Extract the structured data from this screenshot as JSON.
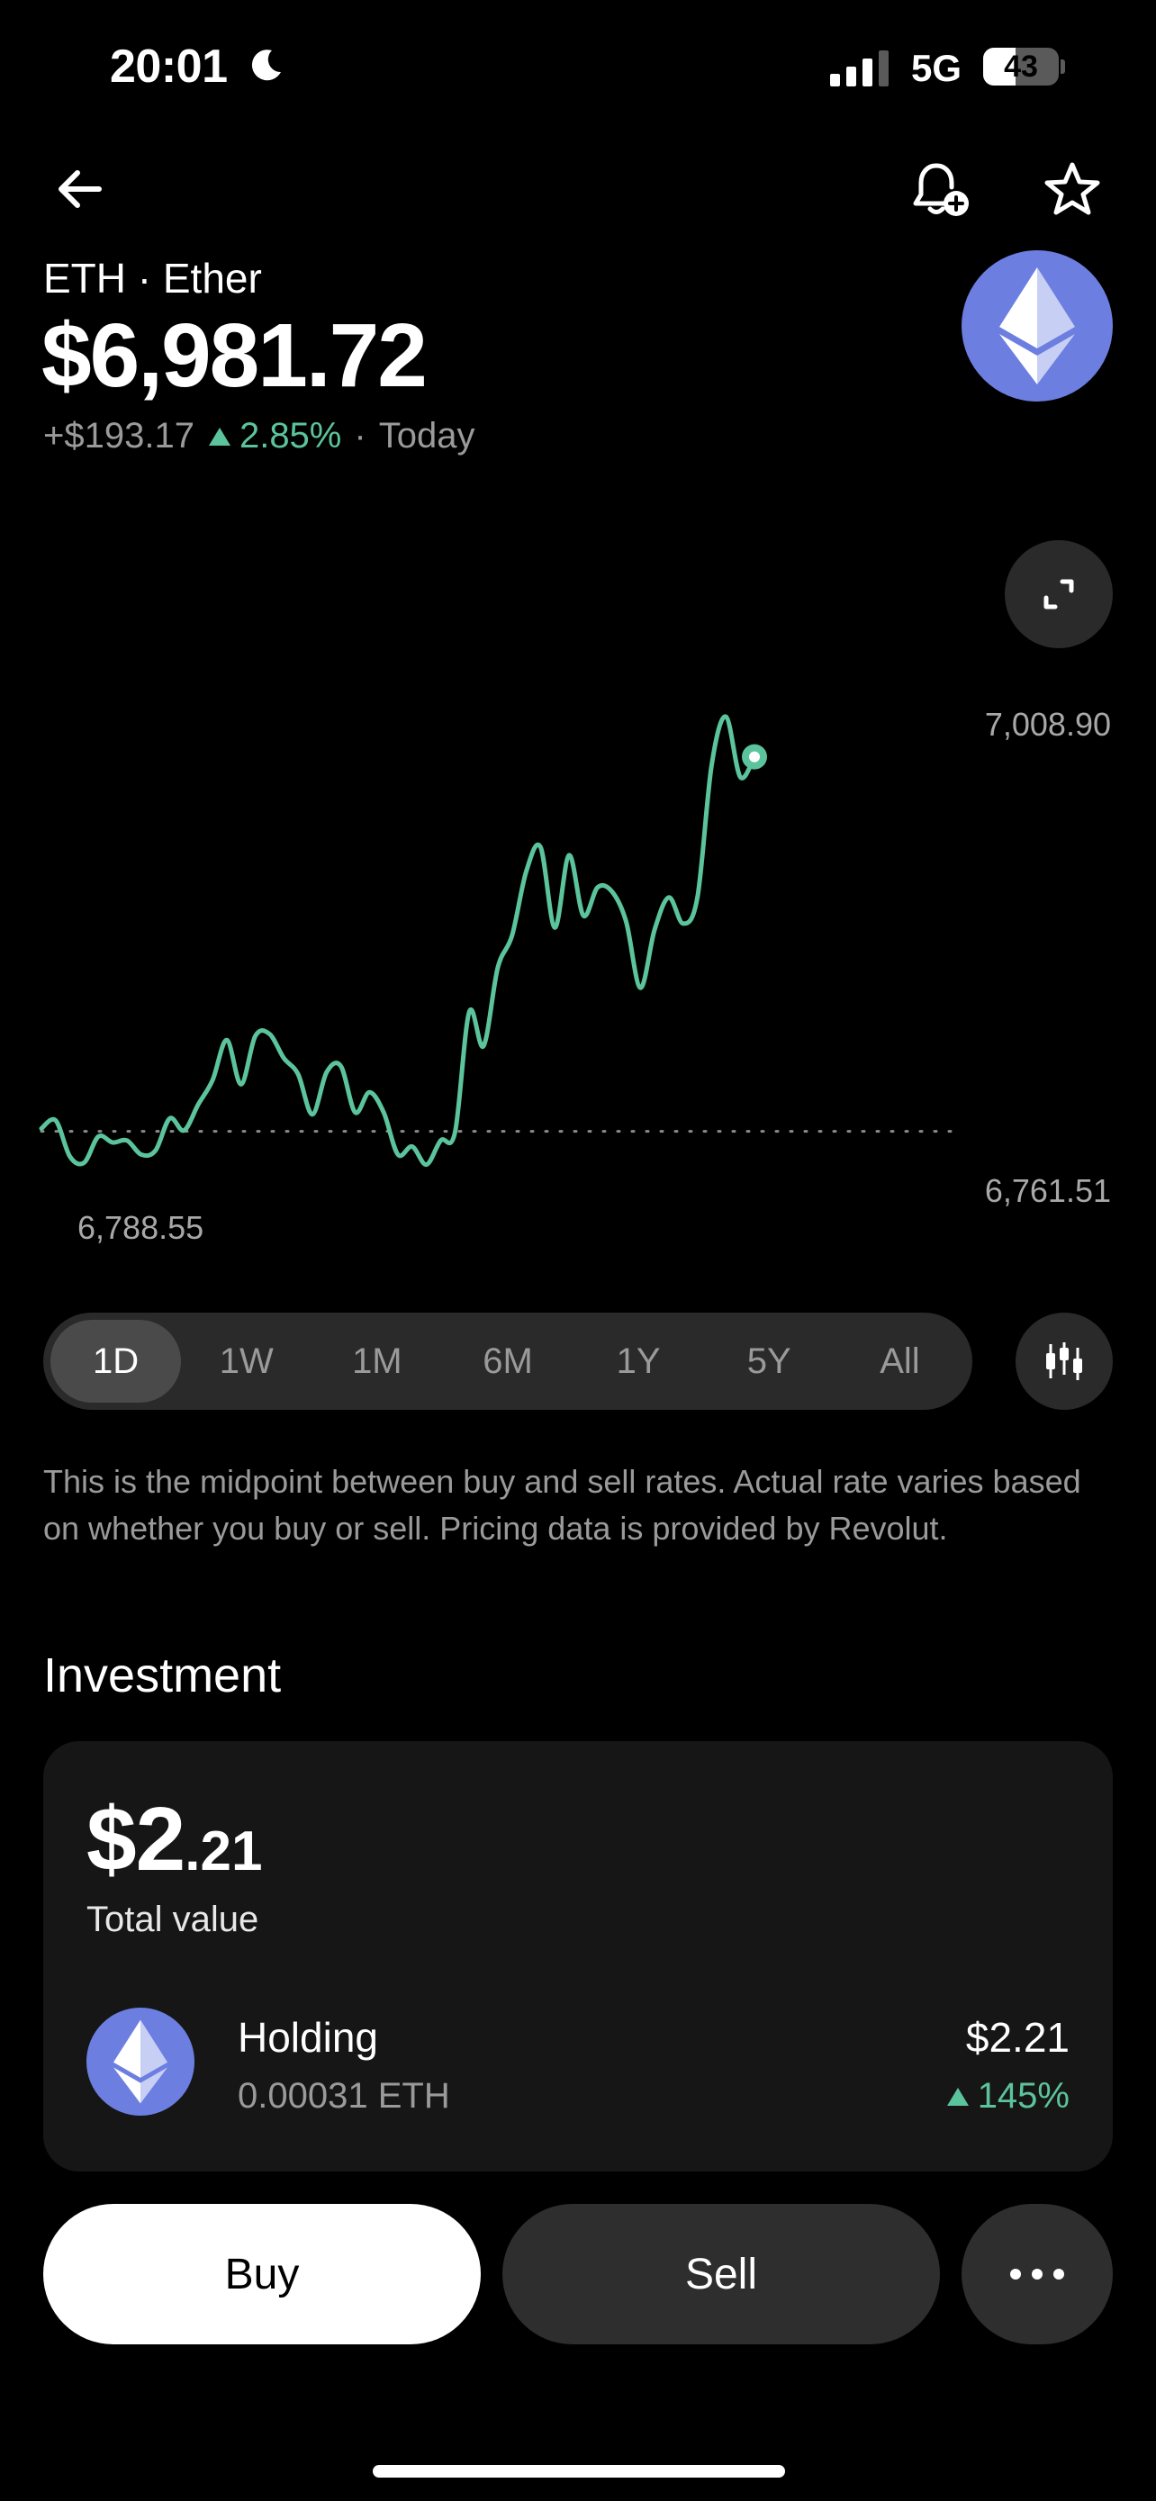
{
  "status_bar": {
    "time": "20:01",
    "network": "5G",
    "battery_level": "43",
    "battery_fraction": 0.43
  },
  "header": {
    "asset_label": "ETH · Ether",
    "price": "$6,981.72",
    "change_abs": "+$193.17",
    "change_pct": "2.85%",
    "change_period": "Today",
    "icons": [
      "back-arrow-icon",
      "bell-plus-icon",
      "star-icon",
      "ethereum-logo"
    ]
  },
  "chart_data": {
    "type": "line",
    "high_label": "7,008.90",
    "low_label": "6,761.51",
    "start_label": "6,788.55",
    "ylim": [
      6761.51,
      7008.9
    ],
    "baseline": 6788.55,
    "line_color": "#5cc49c",
    "values": [
      6790,
      6794,
      6776,
      6773,
      6786,
      6783,
      6784,
      6777,
      6779,
      6795,
      6789,
      6802,
      6814,
      6834,
      6812,
      6836,
      6837,
      6825,
      6817,
      6797,
      6818,
      6821,
      6798,
      6808,
      6798,
      6777,
      6781,
      6772,
      6784,
      6788,
      6848,
      6831,
      6870,
      6886,
      6918,
      6930,
      6890,
      6926,
      6896,
      6910,
      6908,
      6893,
      6860,
      6889,
      6905,
      6892,
      6905,
      6971,
      6995,
      6965,
      6975
    ]
  },
  "range_tabs": [
    "1D",
    "1W",
    "1M",
    "6M",
    "1Y",
    "5Y",
    "All"
  ],
  "range_selected": "1D",
  "disclaimer": "This is the midpoint between buy and sell rates. Actual rate varies based on whether you buy or sell. Pricing data is provided by Revolut.",
  "investment": {
    "title": "Investment",
    "total_main": "$2",
    "total_cents": ".21",
    "total_label": "Total value",
    "holding": {
      "name": "Holding",
      "qty": "0.00031 ETH",
      "value": "$2.21",
      "pct": "145%"
    }
  },
  "actions": {
    "buy": "Buy",
    "sell": "Sell"
  },
  "colors": {
    "accent_green": "#5cc49c",
    "eth_blue": "#6c7fe0",
    "background": "#000000"
  }
}
